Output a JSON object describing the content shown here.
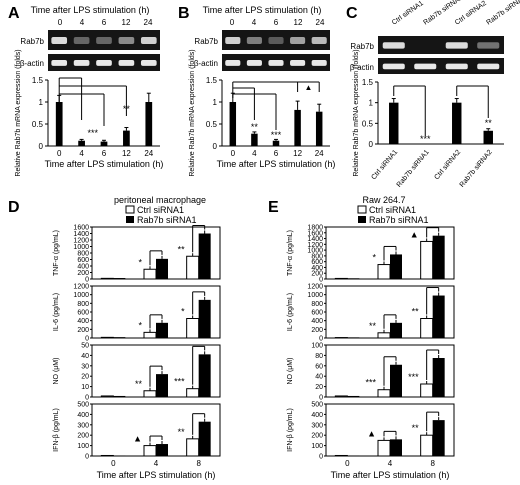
{
  "panels": {
    "A": {
      "label": "A",
      "gel_header": "Time after LPS stimulation (h)",
      "gel_lanes": [
        "0",
        "4",
        "6",
        "12",
        "24"
      ],
      "gel_rows": [
        "Rab7b",
        "β-actin"
      ],
      "chart_data": {
        "type": "bar",
        "categories": [
          "0",
          "4",
          "6",
          "12",
          "24"
        ],
        "values": [
          1.0,
          0.12,
          0.1,
          0.35,
          1.0
        ],
        "errors": [
          0.15,
          0.03,
          0.03,
          0.07,
          0.2
        ],
        "ylabel": "Relative Rab7b mRNA expression (folds)",
        "xlabel": "Time after LPS stimulation (h)",
        "ylim": [
          0,
          1.5
        ],
        "yticks": [
          "0",
          "0.5",
          "1",
          "1.5"
        ],
        "annotations": [
          "***",
          "**"
        ]
      }
    },
    "B": {
      "label": "B",
      "gel_header": "Time after LPS stimulation (h)",
      "gel_lanes": [
        "0",
        "4",
        "6",
        "12",
        "24"
      ],
      "gel_rows": [
        "Rab7b",
        "β-actin"
      ],
      "chart_data": {
        "type": "bar",
        "categories": [
          "0",
          "4",
          "6",
          "12",
          "24"
        ],
        "values": [
          1.0,
          0.28,
          0.12,
          0.82,
          0.78
        ],
        "errors": [
          0.2,
          0.04,
          0.03,
          0.2,
          0.17
        ],
        "ylabel": "Relative Rab7b mRNA expression (folds)",
        "xlabel": "Time after LPS stimulation (h)",
        "ylim": [
          0,
          1.5
        ],
        "yticks": [
          "0",
          "0.5",
          "1",
          "1.5"
        ],
        "annotations": [
          "**",
          "***",
          "▲"
        ]
      }
    },
    "C": {
      "label": "C",
      "gel_lanes": [
        "Ctrl siRNA1",
        "Rab7b siRNAi",
        "Ctrl siRNA2",
        "Rab7b siRNA2"
      ],
      "gel_rows": [
        "Rab7b",
        "β-actin"
      ],
      "chart_data": {
        "type": "bar",
        "categories": [
          "Ctrl siRNA1",
          "Rab7b siRNA1",
          "Ctrl siRNA2",
          "Rab7b siRNA2"
        ],
        "values": [
          1.0,
          0.0,
          1.0,
          0.32
        ],
        "errors": [
          0.1,
          0.0,
          0.1,
          0.05
        ],
        "ylabel": "Relative Rab7b mRNA expression (folds)",
        "ylim": [
          0,
          1.5
        ],
        "yticks": [
          "0",
          "0.5",
          "1",
          "1.5"
        ],
        "annotations": [
          "***",
          "**"
        ]
      }
    },
    "D": {
      "label": "D",
      "subtitle": "peritoneal macrophage",
      "legend": [
        "Ctrl siRNA1",
        "Rab7b siRNA1"
      ],
      "xlabel": "Time after LPS stimulation (h)",
      "xticks": [
        "0",
        "4",
        "8"
      ],
      "chart_data": [
        {
          "type": "bar",
          "ylabel": "TNF-α (pg/mL)",
          "ylim": [
            0,
            1600
          ],
          "yticks": [
            "0",
            "200",
            "400",
            "600",
            "800",
            "1000",
            "1200",
            "1400",
            "1600"
          ],
          "categories": [
            "0",
            "4",
            "8"
          ],
          "series": [
            {
              "name": "Ctrl siRNA1",
              "values": [
                20,
                300,
                700
              ]
            },
            {
              "name": "Rab7b siRNA1",
              "values": [
                30,
                620,
                1400
              ]
            }
          ],
          "annotations": [
            "*",
            "**"
          ]
        },
        {
          "type": "bar",
          "ylabel": "IL-6 (pg/mL)",
          "ylim": [
            0,
            1200
          ],
          "yticks": [
            "0",
            "200",
            "400",
            "600",
            "800",
            "1000",
            "1200"
          ],
          "categories": [
            "0",
            "4",
            "8"
          ],
          "series": [
            {
              "name": "Ctrl siRNA1",
              "values": [
                15,
                130,
                450
              ]
            },
            {
              "name": "Rab7b siRNA1",
              "values": [
                20,
                350,
                880
              ]
            }
          ],
          "annotations": [
            "*",
            "*"
          ]
        },
        {
          "type": "bar",
          "ylabel": "NO (μM)",
          "ylim": [
            0,
            50
          ],
          "yticks": [
            "0",
            "10",
            "20",
            "30",
            "40",
            "50"
          ],
          "categories": [
            "0",
            "4",
            "8"
          ],
          "series": [
            {
              "name": "Ctrl siRNA1",
              "values": [
                1,
                6,
                8
              ]
            },
            {
              "name": "Rab7b siRNA1",
              "values": [
                1,
                22,
                41
              ]
            }
          ],
          "annotations": [
            "**",
            "***"
          ]
        },
        {
          "type": "bar",
          "ylabel": "IFN-β (pg/mL)",
          "ylim": [
            0,
            500
          ],
          "yticks": [
            "0",
            "100",
            "200",
            "300",
            "400",
            "500"
          ],
          "categories": [
            "0",
            "4",
            "8"
          ],
          "series": [
            {
              "name": "Ctrl siRNA1",
              "values": [
                5,
                100,
                165
              ]
            },
            {
              "name": "Rab7b siRNA1",
              "values": [
                5,
                115,
                330
              ]
            }
          ],
          "annotations": [
            "▲",
            "**"
          ]
        }
      ]
    },
    "E": {
      "label": "E",
      "subtitle": "Raw 264.7",
      "legend": [
        "Ctrl siRNA1",
        "Rab7b siRNA1"
      ],
      "xlabel": "Time after LPS stimulation (h)",
      "xticks": [
        "0",
        "4",
        "8"
      ],
      "chart_data": [
        {
          "type": "bar",
          "ylabel": "TNF-α (pg/mL)",
          "ylim": [
            0,
            1800
          ],
          "yticks": [
            "0",
            "200",
            "400",
            "600",
            "800",
            "1000",
            "1200",
            "1400",
            "1600",
            "1800"
          ],
          "categories": [
            "0",
            "4",
            "8"
          ],
          "series": [
            {
              "name": "Ctrl siRNA1",
              "values": [
                20,
                500,
                1300
              ]
            },
            {
              "name": "Rab7b siRNA1",
              "values": [
                25,
                850,
                1500
              ]
            }
          ],
          "annotations": [
            "*",
            "▲"
          ]
        },
        {
          "type": "bar",
          "ylabel": "IL-6 (pg/mL)",
          "ylim": [
            0,
            1200
          ],
          "yticks": [
            "0",
            "200",
            "400",
            "600",
            "800",
            "1000",
            "1200"
          ],
          "categories": [
            "0",
            "4",
            "8"
          ],
          "series": [
            {
              "name": "Ctrl siRNA1",
              "values": [
                10,
                120,
                450
              ]
            },
            {
              "name": "Rab7b siRNA1",
              "values": [
                15,
                350,
                980
              ]
            }
          ],
          "annotations": [
            "**",
            "**"
          ]
        },
        {
          "type": "bar",
          "ylabel": "NO (μM)",
          "ylim": [
            0,
            100
          ],
          "yticks": [
            "0",
            "20",
            "40",
            "60",
            "80",
            "100"
          ],
          "categories": [
            "0",
            "4",
            "8"
          ],
          "series": [
            {
              "name": "Ctrl siRNA1",
              "values": [
                2,
                14,
                25
              ]
            },
            {
              "name": "Rab7b siRNA1",
              "values": [
                2,
                62,
                75
              ]
            }
          ],
          "annotations": [
            "***",
            "***"
          ]
        },
        {
          "type": "bar",
          "ylabel": "IFN-β (pg/mL)",
          "ylim": [
            0,
            500
          ],
          "yticks": [
            "0",
            "100",
            "200",
            "300",
            "400",
            "500"
          ],
          "categories": [
            "0",
            "4",
            "8"
          ],
          "series": [
            {
              "name": "Ctrl siRNA1",
              "values": [
                5,
                150,
                200
              ]
            },
            {
              "name": "Rab7b siRNA1",
              "values": [
                5,
                160,
                345
              ]
            }
          ],
          "annotations": [
            "▲",
            "**"
          ]
        }
      ]
    }
  }
}
